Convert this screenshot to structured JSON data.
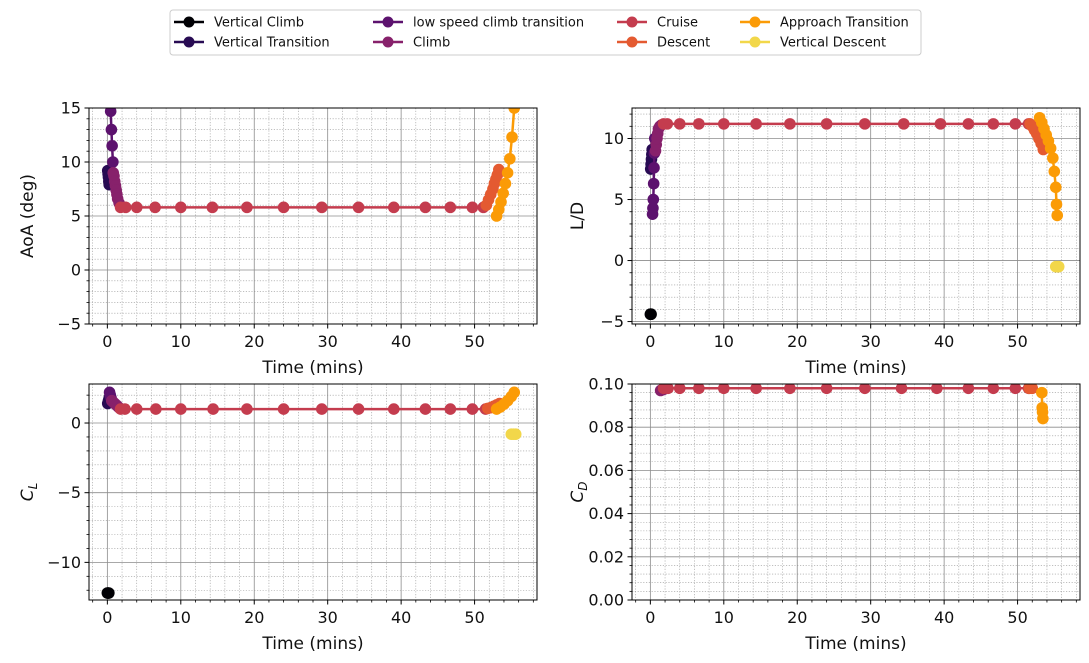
{
  "legend": {
    "entries": [
      {
        "name": "Vertical Climb",
        "color": "#000004"
      },
      {
        "name": "Vertical Transition",
        "color": "#280b53"
      },
      {
        "name": "low speed climb transition",
        "color": "#5c126e"
      },
      {
        "name": "Climb",
        "color": "#87216b"
      },
      {
        "name": "Cruise",
        "color": "#c43c4e"
      },
      {
        "name": "Descent",
        "color": "#e45a31"
      },
      {
        "name": "Approach Transition",
        "color": "#fb9b06"
      },
      {
        "name": "Vertical Descent",
        "color": "#f2d74a"
      }
    ]
  },
  "chart_data": [
    {
      "type": "line",
      "panel": "top-left",
      "xlabel": "Time (mins)",
      "ylabel": "AoA (deg)",
      "xlim": [
        -2.5,
        58.5
      ],
      "ylim": [
        -5,
        15
      ],
      "xticks": [
        0,
        10,
        20,
        30,
        40,
        50
      ],
      "yticks": [
        -5,
        0,
        5,
        10,
        15
      ],
      "grid": true,
      "series": [
        {
          "name": "Vertical Transition",
          "x": [
            0.05,
            0.1,
            0.15,
            0.2,
            0.25
          ],
          "y": [
            9.2,
            8.9,
            8.6,
            8.2,
            7.9
          ]
        },
        {
          "name": "low speed climb transition",
          "x": [
            0.45,
            0.55,
            0.65,
            0.75
          ],
          "y": [
            14.7,
            13.0,
            11.5,
            10.0
          ]
        },
        {
          "name": "Climb",
          "x": [
            0.8,
            0.9,
            1.0,
            1.1,
            1.2,
            1.3,
            1.4,
            1.6
          ],
          "y": [
            9.0,
            8.7,
            8.2,
            7.8,
            7.4,
            7.0,
            6.6,
            6.2
          ]
        },
        {
          "name": "Cruise",
          "x": [
            1.8,
            2.5,
            4.0,
            6.5,
            10.0,
            14.3,
            19.0,
            24.0,
            29.2,
            34.2,
            39.0,
            43.3,
            46.7,
            49.7,
            51.2
          ],
          "y": [
            5.8,
            5.8,
            5.8,
            5.8,
            5.8,
            5.8,
            5.8,
            5.8,
            5.8,
            5.8,
            5.8,
            5.8,
            5.8,
            5.8,
            5.8
          ]
        },
        {
          "name": "Descent",
          "x": [
            51.6,
            51.9,
            52.2,
            52.5,
            52.7,
            52.9,
            53.1,
            53.3
          ],
          "y": [
            6.0,
            6.5,
            7.0,
            7.5,
            8.0,
            8.4,
            8.8,
            9.3
          ]
        },
        {
          "name": "Approach Transition",
          "x": [
            53.0,
            53.3,
            53.6,
            53.9,
            54.2,
            54.5,
            54.8,
            55.1,
            55.4
          ],
          "y": [
            5.0,
            5.6,
            6.3,
            7.1,
            8.0,
            9.0,
            10.3,
            12.3,
            15.0
          ]
        }
      ]
    },
    {
      "type": "line",
      "panel": "top-right",
      "xlabel": "Time (mins)",
      "ylabel": "L/D",
      "xlim": [
        -2.5,
        58.5
      ],
      "ylim": [
        -5.2,
        12.5
      ],
      "xticks": [
        0,
        10,
        20,
        30,
        40,
        50
      ],
      "yticks": [
        -5,
        0,
        5,
        10
      ],
      "grid": true,
      "series": [
        {
          "name": "Vertical Climb",
          "x": [
            0.0,
            0.05,
            0.1
          ],
          "y": [
            -4.4,
            -4.4,
            -4.4
          ]
        },
        {
          "name": "Vertical Transition",
          "x": [
            0.05,
            0.1,
            0.15,
            0.2,
            0.25
          ],
          "y": [
            7.5,
            7.9,
            8.3,
            8.7,
            9.1
          ]
        },
        {
          "name": "low speed climb transition",
          "x": [
            0.3,
            0.35,
            0.4,
            0.45,
            0.5,
            0.55,
            0.6
          ],
          "y": [
            3.8,
            4.3,
            5.0,
            6.3,
            7.6,
            8.8,
            10.0
          ]
        },
        {
          "name": "Climb",
          "x": [
            0.7,
            0.8,
            0.9,
            1.0,
            1.1,
            1.3,
            1.5
          ],
          "y": [
            9.0,
            9.5,
            10.0,
            10.4,
            10.8,
            11.0,
            11.1
          ]
        },
        {
          "name": "Cruise",
          "x": [
            1.8,
            2.3,
            4.0,
            6.6,
            10.0,
            14.4,
            19.0,
            24.0,
            29.2,
            34.5,
            39.5,
            43.3,
            46.7,
            49.7,
            51.5
          ],
          "y": [
            11.2,
            11.2,
            11.2,
            11.2,
            11.2,
            11.2,
            11.2,
            11.2,
            11.2,
            11.2,
            11.2,
            11.2,
            11.2,
            11.2,
            11.2
          ]
        },
        {
          "name": "Descent",
          "x": [
            51.7,
            52.0,
            52.3,
            52.6,
            52.9,
            53.2,
            53.5
          ],
          "y": [
            11.2,
            11.0,
            10.7,
            10.4,
            10.0,
            9.6,
            9.1
          ]
        },
        {
          "name": "Approach Transition",
          "x": [
            53.0,
            53.3,
            53.6,
            53.9,
            54.2,
            54.5,
            54.8,
            55.0,
            55.2,
            55.3,
            55.4
          ],
          "y": [
            11.7,
            11.3,
            10.8,
            10.3,
            9.8,
            9.2,
            8.4,
            7.3,
            6.0,
            4.6,
            3.7
          ]
        },
        {
          "name": "Vertical Descent",
          "x": [
            55.2,
            55.4,
            55.6
          ],
          "y": [
            -0.5,
            -0.5,
            -0.5
          ]
        }
      ]
    },
    {
      "type": "line",
      "panel": "bottom-left",
      "xlabel": "Time (mins)",
      "ylabel": "C_L",
      "xlim": [
        -2.5,
        58.5
      ],
      "ylim": [
        -12.7,
        2.8
      ],
      "xticks": [
        0,
        10,
        20,
        30,
        40,
        50
      ],
      "yticks": [
        -10,
        -5,
        0
      ],
      "grid": true,
      "series": [
        {
          "name": "Vertical Climb",
          "x": [
            0.0,
            0.1,
            0.2
          ],
          "y": [
            -12.2,
            -12.2,
            -12.2
          ]
        },
        {
          "name": "Vertical Transition",
          "x": [
            0.05,
            0.15,
            0.25
          ],
          "y": [
            1.4,
            1.6,
            1.8
          ]
        },
        {
          "name": "low speed climb transition",
          "x": [
            0.3,
            0.4,
            0.5
          ],
          "y": [
            2.2,
            2.0,
            1.8
          ]
        },
        {
          "name": "Climb",
          "x": [
            0.6,
            0.8,
            1.0,
            1.2,
            1.4,
            1.6
          ],
          "y": [
            1.6,
            1.5,
            1.4,
            1.3,
            1.2,
            1.1
          ]
        },
        {
          "name": "Cruise",
          "x": [
            1.8,
            2.4,
            4.0,
            6.6,
            10.0,
            14.4,
            19.0,
            24.0,
            29.2,
            34.2,
            39.0,
            43.3,
            46.7,
            49.7,
            51.5
          ],
          "y": [
            1.0,
            1.0,
            1.0,
            1.0,
            1.0,
            1.0,
            1.0,
            1.0,
            1.0,
            1.0,
            1.0,
            1.0,
            1.0,
            1.0,
            1.0
          ]
        },
        {
          "name": "Descent",
          "x": [
            51.8,
            52.2,
            52.6,
            53.0,
            53.4
          ],
          "y": [
            1.05,
            1.1,
            1.2,
            1.3,
            1.4
          ]
        },
        {
          "name": "Approach Transition",
          "x": [
            53.0,
            53.5,
            54.0,
            54.5,
            55.0,
            55.4
          ],
          "y": [
            1.0,
            1.15,
            1.35,
            1.6,
            1.9,
            2.2
          ]
        },
        {
          "name": "Vertical Descent",
          "x": [
            55.0,
            55.3,
            55.6
          ],
          "y": [
            -0.8,
            -0.8,
            -0.8
          ]
        }
      ]
    },
    {
      "type": "line",
      "panel": "bottom-right",
      "xlabel": "Time (mins)",
      "ylabel": "C_D",
      "xlim": [
        -2.5,
        58.5
      ],
      "ylim": [
        0.0,
        0.1
      ],
      "xticks": [
        0,
        10,
        20,
        30,
        40,
        50
      ],
      "yticks": [
        0.0,
        0.02,
        0.04,
        0.06,
        0.08,
        0.1
      ],
      "ytick_labels": [
        "0.00",
        "0.02",
        "0.04",
        "0.06",
        "0.08",
        "0.10"
      ],
      "grid": true,
      "series": [
        {
          "name": "Climb",
          "x": [
            1.4,
            1.8
          ],
          "y": [
            0.097,
            0.0975
          ]
        },
        {
          "name": "Cruise",
          "x": [
            1.8,
            2.4,
            4.0,
            6.6,
            10.0,
            14.4,
            19.0,
            24.0,
            29.2,
            34.2,
            39.0,
            43.3,
            46.7,
            49.7,
            51.5
          ],
          "y": [
            0.098,
            0.098,
            0.098,
            0.098,
            0.098,
            0.098,
            0.098,
            0.098,
            0.098,
            0.098,
            0.098,
            0.098,
            0.098,
            0.098,
            0.098
          ]
        },
        {
          "name": "Descent",
          "x": [
            51.6,
            52.0
          ],
          "y": [
            0.098,
            0.098
          ]
        },
        {
          "name": "Approach Transition",
          "x": [
            53.3,
            53.35,
            53.4,
            53.45
          ],
          "y": [
            0.096,
            0.089,
            0.087,
            0.084
          ]
        }
      ]
    }
  ]
}
